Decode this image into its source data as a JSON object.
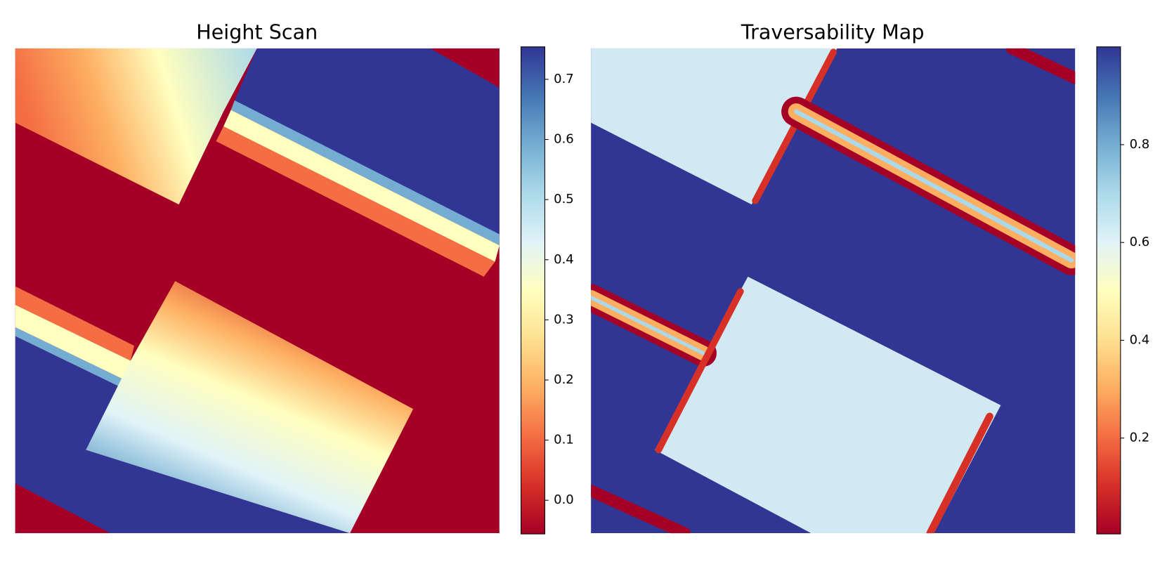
{
  "chart_data": [
    {
      "type": "heatmap",
      "title": "Height Scan",
      "colorbar": {
        "lim": [
          -0.056,
          0.754
        ],
        "ticks": [
          {
            "value": 0,
            "label": "0.0"
          },
          0.1,
          0.2,
          0.3,
          0.4,
          0.5,
          0.6,
          0.7
        ]
      }
    },
    {
      "type": "heatmap",
      "title": "Traversability Map",
      "colorbar": {
        "lim": [
          0.004,
          1.0
        ],
        "ticks": [
          0.2,
          0.4,
          0.6,
          0.8
        ]
      }
    }
  ]
}
